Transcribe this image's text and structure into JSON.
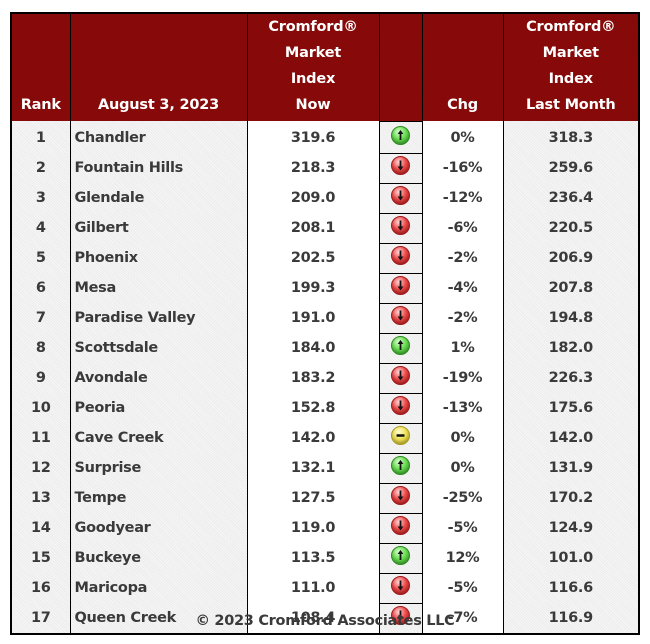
{
  "header": {
    "rank": "Rank",
    "date": "August 3, 2023",
    "now_lines": [
      "Cromford®",
      "Market",
      "Index",
      "Now"
    ],
    "trend": "",
    "chg": "Chg",
    "last_month_lines": [
      "Cromford®",
      "Market",
      "Index",
      "Last Month"
    ]
  },
  "colors": {
    "header_bg": "#8b0a0a",
    "header_text": "#ffffff",
    "body_text": "#3a3a3a",
    "up": "#4ccf3a",
    "down": "#e03030",
    "flat": "#e8dc4a"
  },
  "rows": [
    {
      "rank": "1",
      "name": "Chandler",
      "now": "319.6",
      "trend": "up-arrow-icon",
      "chg": "0%",
      "last_month": "318.3"
    },
    {
      "rank": "2",
      "name": "Fountain Hills",
      "now": "218.3",
      "trend": "down-arrow-icon",
      "chg": "-16%",
      "last_month": "259.6"
    },
    {
      "rank": "3",
      "name": "Glendale",
      "now": "209.0",
      "trend": "down-arrow-icon",
      "chg": "-12%",
      "last_month": "236.4"
    },
    {
      "rank": "4",
      "name": "Gilbert",
      "now": "208.1",
      "trend": "down-arrow-icon",
      "chg": "-6%",
      "last_month": "220.5"
    },
    {
      "rank": "5",
      "name": "Phoenix",
      "now": "202.5",
      "trend": "down-arrow-icon",
      "chg": "-2%",
      "last_month": "206.9"
    },
    {
      "rank": "6",
      "name": "Mesa",
      "now": "199.3",
      "trend": "down-arrow-icon",
      "chg": "-4%",
      "last_month": "207.8"
    },
    {
      "rank": "7",
      "name": "Paradise Valley",
      "now": "191.0",
      "trend": "down-arrow-icon",
      "chg": "-2%",
      "last_month": "194.8"
    },
    {
      "rank": "8",
      "name": "Scottsdale",
      "now": "184.0",
      "trend": "up-arrow-icon",
      "chg": "1%",
      "last_month": "182.0"
    },
    {
      "rank": "9",
      "name": "Avondale",
      "now": "183.2",
      "trend": "down-arrow-icon",
      "chg": "-19%",
      "last_month": "226.3"
    },
    {
      "rank": "10",
      "name": "Peoria",
      "now": "152.8",
      "trend": "down-arrow-icon",
      "chg": "-13%",
      "last_month": "175.6"
    },
    {
      "rank": "11",
      "name": "Cave Creek",
      "now": "142.0",
      "trend": "flat-dash-icon",
      "chg": "0%",
      "last_month": "142.0"
    },
    {
      "rank": "12",
      "name": "Surprise",
      "now": "132.1",
      "trend": "up-arrow-icon",
      "chg": "0%",
      "last_month": "131.9"
    },
    {
      "rank": "13",
      "name": "Tempe",
      "now": "127.5",
      "trend": "down-arrow-icon",
      "chg": "-25%",
      "last_month": "170.2"
    },
    {
      "rank": "14",
      "name": "Goodyear",
      "now": "119.0",
      "trend": "down-arrow-icon",
      "chg": "-5%",
      "last_month": "124.9"
    },
    {
      "rank": "15",
      "name": "Buckeye",
      "now": "113.5",
      "trend": "up-arrow-icon",
      "chg": "12%",
      "last_month": "101.0"
    },
    {
      "rank": "16",
      "name": "Maricopa",
      "now": "111.0",
      "trend": "down-arrow-icon",
      "chg": "-5%",
      "last_month": "116.6"
    },
    {
      "rank": "17",
      "name": "Queen Creek",
      "now": "108.4",
      "trend": "down-arrow-icon",
      "chg": "-7%",
      "last_month": "116.9"
    }
  ],
  "footer": {
    "copyright": "© 2023 Cromford Associates LLC"
  }
}
